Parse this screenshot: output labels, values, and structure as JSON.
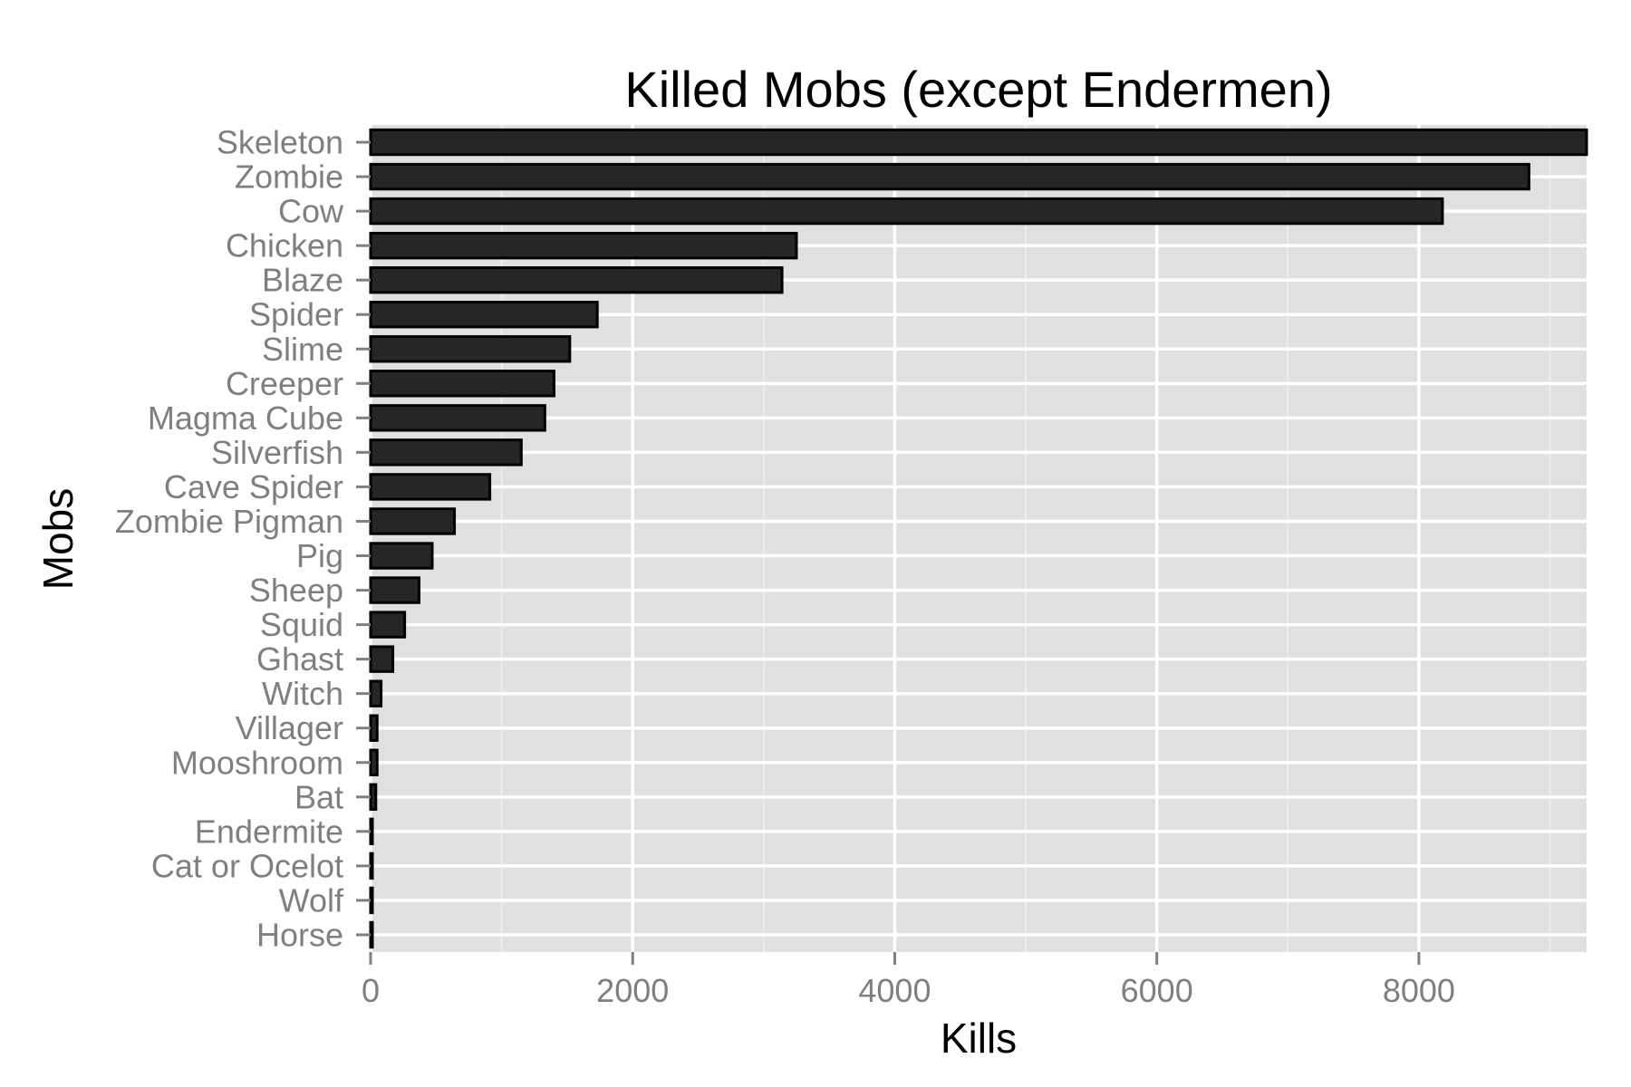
{
  "chart_data": {
    "type": "bar",
    "orientation": "horizontal",
    "title": "Killed Mobs (except Endermen)",
    "xlabel": "Kills",
    "ylabel": "Mobs",
    "categories": [
      "Skeleton",
      "Zombie",
      "Cow",
      "Chicken",
      "Blaze",
      "Spider",
      "Slime",
      "Creeper",
      "Magma Cube",
      "Silverfish",
      "Cave Spider",
      "Zombie Pigman",
      "Pig",
      "Sheep",
      "Squid",
      "Ghast",
      "Witch",
      "Villager",
      "Mooshroom",
      "Bat",
      "Endermite",
      "Cat or Ocelot",
      "Wolf",
      "Horse"
    ],
    "values": [
      9280,
      8840,
      8180,
      3250,
      3140,
      1730,
      1520,
      1400,
      1330,
      1150,
      910,
      640,
      470,
      370,
      260,
      170,
      80,
      50,
      50,
      40,
      10,
      10,
      5,
      5
    ],
    "xlim": [
      0,
      9280
    ],
    "xticks": [
      0,
      2000,
      4000,
      6000,
      8000
    ],
    "xtick_labels": [
      "0",
      "2000",
      "4000",
      "6000",
      "8000"
    ],
    "grid": true,
    "colors": {
      "bar_fill": "#262626",
      "bar_stroke": "#000000",
      "panel_background": "#e0e0e0",
      "grid": "#ffffff",
      "tick_label": "#7f7f7f"
    }
  }
}
